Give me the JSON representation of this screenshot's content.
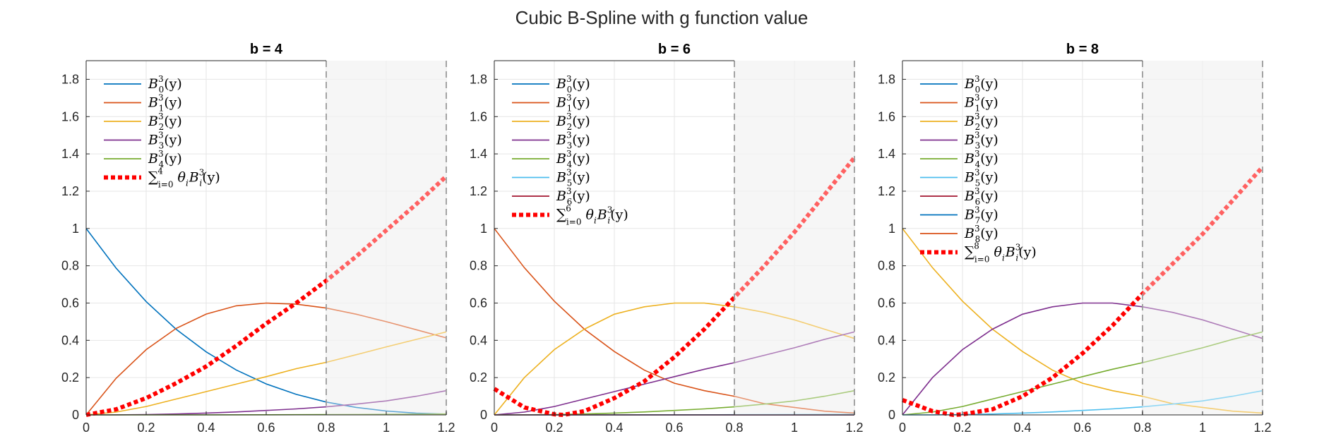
{
  "figure": {
    "title": "Cubic B-Spline with g function value"
  },
  "colors": {
    "palette": [
      "#0072BD",
      "#D95319",
      "#EDB120",
      "#7E2F8E",
      "#77AC30",
      "#4DBEEE",
      "#A2142F"
    ],
    "sum_line": "#FF0000",
    "shaded_region": "#F0F0F0",
    "grid": "#E6E6E6",
    "boundary_line": "#9A9A9A"
  },
  "chart_data": [
    {
      "type": "line",
      "title": "b = 4",
      "xlim": [
        0,
        1.2
      ],
      "ylim": [
        0,
        1.9
      ],
      "xticks": [
        "0",
        "0.2",
        "0.4",
        "0.6",
        "0.8",
        "1",
        "1.2"
      ],
      "yticks": [
        "0",
        "0.2",
        "0.4",
        "0.6",
        "0.8",
        "1",
        "1.2",
        "1.4",
        "1.6",
        "1.8"
      ],
      "grid": true,
      "shaded_region_x": [
        0.8,
        1.2
      ],
      "vertical_line_x": 0.8,
      "legend_position": "top-left",
      "legend": [
        {
          "base": "B",
          "sup": "3",
          "sub": "0",
          "tail": "(y)"
        },
        {
          "base": "B",
          "sup": "3",
          "sub": "1",
          "tail": "(y)"
        },
        {
          "base": "B",
          "sup": "3",
          "sub": "2",
          "tail": "(y)"
        },
        {
          "base": "B",
          "sup": "3",
          "sub": "3",
          "tail": "(y)"
        },
        {
          "base": "B",
          "sup": "3",
          "sub": "4",
          "tail": "(y)"
        },
        {
          "base": "∑",
          "sup": "4",
          "sub": "i=0",
          "tail": "θ",
          "tail_sub": "i",
          "tail2": "B",
          "tail2_sup": "3",
          "tail2_sub": "i",
          "tail3": "(y)",
          "is_sum": true
        }
      ],
      "series": [
        {
          "color_index": 0,
          "x": [
            0,
            0.1,
            0.2,
            0.3,
            0.4,
            0.5,
            0.6,
            0.7,
            0.8,
            0.9,
            1.0,
            1.1,
            1.2
          ],
          "y": [
            1.0,
            0.787,
            0.608,
            0.459,
            0.338,
            0.241,
            0.166,
            0.11,
            0.069,
            0.04,
            0.021,
            0.009,
            0.004
          ]
        },
        {
          "color_index": 1,
          "x": [
            0,
            0.1,
            0.2,
            0.3,
            0.4,
            0.5,
            0.6,
            0.7,
            0.8,
            0.9,
            1.0,
            1.1,
            1.2
          ],
          "y": [
            0,
            0.197,
            0.35,
            0.464,
            0.541,
            0.585,
            0.6,
            0.594,
            0.573,
            0.54,
            0.5,
            0.457,
            0.413
          ]
        },
        {
          "color_index": 2,
          "x": [
            0,
            0.1,
            0.2,
            0.3,
            0.4,
            0.5,
            0.6,
            0.7,
            0.8,
            0.9,
            1.0,
            1.1,
            1.2
          ],
          "y": [
            0,
            0.015,
            0.045,
            0.085,
            0.125,
            0.165,
            0.205,
            0.248,
            0.282,
            0.323,
            0.365,
            0.405,
            0.445
          ]
        },
        {
          "color_index": 3,
          "x": [
            0,
            0.1,
            0.2,
            0.3,
            0.4,
            0.5,
            0.6,
            0.7,
            0.8,
            0.9,
            1.0,
            1.1,
            1.2
          ],
          "y": [
            0,
            0.0005,
            0.002,
            0.005,
            0.01,
            0.016,
            0.024,
            0.032,
            0.043,
            0.058,
            0.075,
            0.1,
            0.13
          ]
        },
        {
          "color_index": 4,
          "x": [
            0,
            0.2,
            0.4,
            0.6,
            0.8,
            1.0,
            1.2
          ],
          "y": [
            0,
            3e-05,
            0.0002,
            0.0006,
            0.0015,
            0.003,
            0.005
          ]
        },
        {
          "is_sum": true,
          "x": [
            0,
            0.1,
            0.2,
            0.3,
            0.4,
            0.5,
            0.6,
            0.7,
            0.8,
            0.9,
            1.0,
            1.1,
            1.2
          ],
          "y": [
            0,
            0.03,
            0.09,
            0.17,
            0.26,
            0.37,
            0.49,
            0.6,
            0.72,
            0.85,
            0.99,
            1.13,
            1.28
          ]
        }
      ]
    },
    {
      "type": "line",
      "title": "b = 6",
      "xlim": [
        0,
        1.2
      ],
      "ylim": [
        0,
        1.9
      ],
      "xticks": [
        "0",
        "0.2",
        "0.4",
        "0.6",
        "0.8",
        "1",
        "1.2"
      ],
      "yticks": [
        "0",
        "0.2",
        "0.4",
        "0.6",
        "0.8",
        "1",
        "1.2",
        "1.4",
        "1.6",
        "1.8"
      ],
      "grid": true,
      "shaded_region_x": [
        0.8,
        1.2
      ],
      "vertical_line_x": 0.8,
      "legend_position": "top-left",
      "legend": [
        {
          "base": "B",
          "sup": "3",
          "sub": "0",
          "tail": "(y)"
        },
        {
          "base": "B",
          "sup": "3",
          "sub": "1",
          "tail": "(y)"
        },
        {
          "base": "B",
          "sup": "3",
          "sub": "2",
          "tail": "(y)"
        },
        {
          "base": "B",
          "sup": "3",
          "sub": "3",
          "tail": "(y)"
        },
        {
          "base": "B",
          "sup": "3",
          "sub": "4",
          "tail": "(y)"
        },
        {
          "base": "B",
          "sup": "3",
          "sub": "5",
          "tail": "(y)"
        },
        {
          "base": "B",
          "sup": "3",
          "sub": "6",
          "tail": "(y)"
        },
        {
          "base": "∑",
          "sup": "6",
          "sub": "i=0",
          "tail": "θ",
          "tail_sub": "i",
          "tail2": "B",
          "tail2_sup": "3",
          "tail2_sub": "i",
          "tail3": "(y)",
          "is_sum": true
        }
      ],
      "series": [
        {
          "color_index": 0,
          "x": [
            0,
            0.2,
            0.4,
            0.6,
            0.8,
            1.0,
            1.2
          ],
          "y": [
            0,
            0,
            0,
            0,
            0,
            0,
            0
          ]
        },
        {
          "color_index": 1,
          "x": [
            0,
            0.1,
            0.2,
            0.3,
            0.4,
            0.5,
            0.6,
            0.7,
            0.8,
            0.9,
            1.0,
            1.1,
            1.2
          ],
          "y": [
            1.0,
            0.79,
            0.61,
            0.46,
            0.34,
            0.24,
            0.17,
            0.13,
            0.1,
            0.06,
            0.04,
            0.02,
            0.01
          ]
        },
        {
          "color_index": 2,
          "x": [
            0,
            0.1,
            0.2,
            0.3,
            0.4,
            0.5,
            0.6,
            0.7,
            0.8,
            0.9,
            1.0,
            1.1,
            1.2
          ],
          "y": [
            0,
            0.2,
            0.35,
            0.46,
            0.54,
            0.58,
            0.6,
            0.6,
            0.58,
            0.55,
            0.51,
            0.46,
            0.41
          ]
        },
        {
          "color_index": 3,
          "x": [
            0,
            0.1,
            0.2,
            0.3,
            0.4,
            0.5,
            0.6,
            0.7,
            0.8,
            0.9,
            1.0,
            1.1,
            1.2
          ],
          "y": [
            0,
            0.015,
            0.045,
            0.085,
            0.125,
            0.165,
            0.205,
            0.245,
            0.28,
            0.32,
            0.36,
            0.405,
            0.445
          ]
        },
        {
          "color_index": 4,
          "x": [
            0,
            0.1,
            0.2,
            0.3,
            0.4,
            0.5,
            0.6,
            0.7,
            0.8,
            0.9,
            1.0,
            1.1,
            1.2
          ],
          "y": [
            0,
            0.0005,
            0.002,
            0.005,
            0.01,
            0.016,
            0.024,
            0.032,
            0.043,
            0.058,
            0.075,
            0.1,
            0.13
          ]
        },
        {
          "color_index": 5,
          "x": [
            0,
            0.4,
            0.8,
            1.2
          ],
          "y": [
            0,
            0,
            0.001,
            0.003
          ]
        },
        {
          "color_index": 6,
          "x": [
            0,
            0.6,
            1.2
          ],
          "y": [
            0,
            0,
            0
          ]
        },
        {
          "is_sum": true,
          "x": [
            0,
            0.1,
            0.2,
            0.23,
            0.3,
            0.4,
            0.5,
            0.6,
            0.7,
            0.8,
            0.9,
            1.0,
            1.1,
            1.2
          ],
          "y": [
            0.14,
            0.04,
            0.003,
            0.0,
            0.02,
            0.09,
            0.18,
            0.31,
            0.46,
            0.63,
            0.8,
            0.98,
            1.18,
            1.38
          ]
        }
      ]
    },
    {
      "type": "line",
      "title": "b = 8",
      "xlim": [
        0,
        1.2
      ],
      "ylim": [
        0,
        1.9
      ],
      "xticks": [
        "0",
        "0.2",
        "0.4",
        "0.6",
        "0.8",
        "1",
        "1.2"
      ],
      "yticks": [
        "0",
        "0.2",
        "0.4",
        "0.6",
        "0.8",
        "1",
        "1.2",
        "1.4",
        "1.6",
        "1.8"
      ],
      "grid": true,
      "shaded_region_x": [
        0.8,
        1.2
      ],
      "vertical_line_x": 0.8,
      "legend_position": "top-left",
      "legend": [
        {
          "base": "B",
          "sup": "3",
          "sub": "0",
          "tail": "(y)"
        },
        {
          "base": "B",
          "sup": "3",
          "sub": "1",
          "tail": "(y)"
        },
        {
          "base": "B",
          "sup": "3",
          "sub": "2",
          "tail": "(y)"
        },
        {
          "base": "B",
          "sup": "3",
          "sub": "3",
          "tail": "(y)"
        },
        {
          "base": "B",
          "sup": "3",
          "sub": "4",
          "tail": "(y)"
        },
        {
          "base": "B",
          "sup": "3",
          "sub": "5",
          "tail": "(y)"
        },
        {
          "base": "B",
          "sup": "3",
          "sub": "6",
          "tail": "(y)"
        },
        {
          "base": "B",
          "sup": "3",
          "sub": "7",
          "tail": "(y)"
        },
        {
          "base": "B",
          "sup": "3",
          "sub": "8",
          "tail": "(y)"
        },
        {
          "base": "∑",
          "sup": "8",
          "sub": "i=0",
          "tail": "θ",
          "tail_sub": "i",
          "tail2": "B",
          "tail2_sup": "3",
          "tail2_sub": "i",
          "tail3": "(y)",
          "is_sum": true
        }
      ],
      "series": [
        {
          "color_index": 2,
          "x": [
            0,
            0.1,
            0.2,
            0.3,
            0.4,
            0.5,
            0.6,
            0.7,
            0.8,
            0.9,
            1.0,
            1.1,
            1.2
          ],
          "y": [
            1.0,
            0.79,
            0.61,
            0.46,
            0.34,
            0.24,
            0.17,
            0.13,
            0.1,
            0.06,
            0.04,
            0.02,
            0.01
          ]
        },
        {
          "color_index": 3,
          "x": [
            0,
            0.1,
            0.2,
            0.3,
            0.4,
            0.5,
            0.6,
            0.7,
            0.8,
            0.9,
            1.0,
            1.1,
            1.2
          ],
          "y": [
            0,
            0.2,
            0.35,
            0.46,
            0.54,
            0.58,
            0.6,
            0.6,
            0.58,
            0.55,
            0.51,
            0.46,
            0.41
          ]
        },
        {
          "color_index": 4,
          "x": [
            0,
            0.1,
            0.2,
            0.3,
            0.4,
            0.5,
            0.6,
            0.7,
            0.8,
            0.9,
            1.0,
            1.1,
            1.2
          ],
          "y": [
            0,
            0.015,
            0.045,
            0.085,
            0.125,
            0.165,
            0.205,
            0.245,
            0.28,
            0.32,
            0.36,
            0.405,
            0.445
          ]
        },
        {
          "color_index": 5,
          "x": [
            0,
            0.1,
            0.2,
            0.3,
            0.4,
            0.5,
            0.6,
            0.7,
            0.8,
            0.9,
            1.0,
            1.1,
            1.2
          ],
          "y": [
            0,
            0.0005,
            0.002,
            0.005,
            0.01,
            0.016,
            0.024,
            0.032,
            0.043,
            0.058,
            0.075,
            0.1,
            0.13
          ]
        },
        {
          "is_sum": true,
          "x": [
            0,
            0.1,
            0.17,
            0.2,
            0.3,
            0.4,
            0.5,
            0.6,
            0.7,
            0.8,
            0.9,
            1.0,
            1.1,
            1.2
          ],
          "y": [
            0.08,
            0.02,
            0.0,
            0.003,
            0.03,
            0.1,
            0.2,
            0.33,
            0.48,
            0.65,
            0.81,
            0.97,
            1.15,
            1.33
          ]
        }
      ]
    }
  ]
}
